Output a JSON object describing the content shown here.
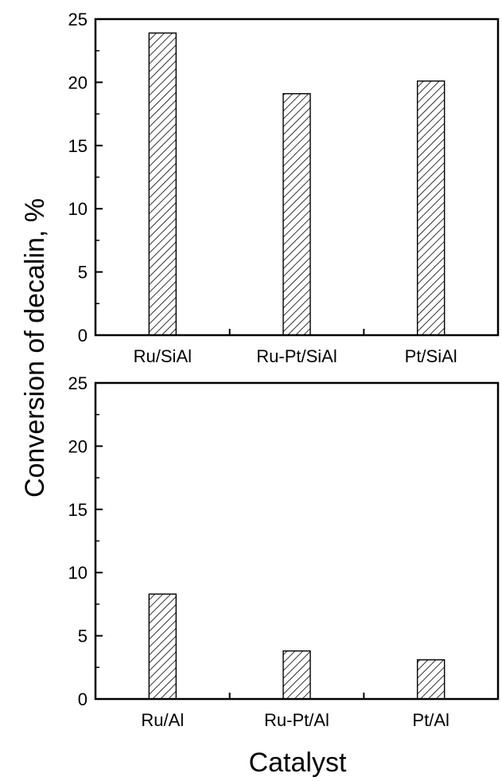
{
  "chart_data": [
    {
      "type": "bar",
      "categories": [
        "Ru/SiAl",
        "Ru-Pt/SiAl",
        "Pt/SiAl"
      ],
      "values": [
        23.9,
        19.1,
        20.1
      ],
      "ylim": [
        0,
        25
      ],
      "yticks": [
        0,
        5,
        10,
        15,
        20,
        25
      ],
      "grid": false,
      "bar_fill": "hatched"
    },
    {
      "type": "bar",
      "categories": [
        "Ru/Al",
        "Ru-Pt/Al",
        "Pt/Al"
      ],
      "values": [
        8.3,
        3.8,
        3.1
      ],
      "ylim": [
        0,
        25
      ],
      "yticks": [
        0,
        5,
        10,
        15,
        20,
        25
      ],
      "grid": false,
      "bar_fill": "hatched"
    }
  ],
  "ylabel": "Conversion of decalin, %",
  "xlabel": "Catalyst",
  "colors": {
    "axis": "#000000",
    "bar_stroke": "#000000",
    "bar_fill": "#ffffff",
    "background": "#ffffff"
  }
}
